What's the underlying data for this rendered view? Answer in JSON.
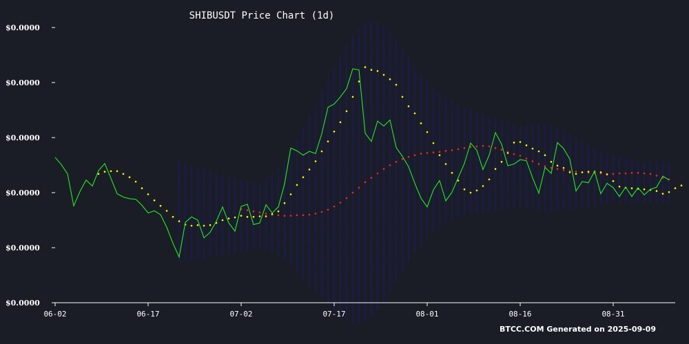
{
  "chart_data": {
    "type": "line",
    "title": "SHIBUSDT Price Chart (1d)",
    "footer": "BTCC.COM Generated on 2025-09-09",
    "xlabel": "",
    "ylabel": "",
    "x_ticks": [
      {
        "label": "06-02",
        "day": 0
      },
      {
        "label": "06-17",
        "day": 15
      },
      {
        "label": "07-02",
        "day": 30
      },
      {
        "label": "07-17",
        "day": 45
      },
      {
        "label": "08-01",
        "day": 60
      },
      {
        "label": "08-16",
        "day": 75
      },
      {
        "label": "08-31",
        "day": 90
      }
    ],
    "y_ticks": [
      {
        "label": "$0.0000",
        "value": 1.13e-05
      },
      {
        "label": "$0.0000",
        "value": 1.23e-05
      },
      {
        "label": "$0.0000",
        "value": 1.33e-05
      },
      {
        "label": "$0.0000",
        "value": 1.43e-05
      },
      {
        "label": "$0.0000",
        "value": 1.53e-05
      },
      {
        "label": "$0.0000",
        "value": 1.63e-05
      }
    ],
    "ylim": [
      1.13e-05,
      1.63e-05
    ],
    "xlim": [
      0,
      100
    ],
    "grid": false,
    "colors": {
      "price": "#22ee22",
      "ma_short": "#ffff00",
      "ma_long": "#ff2222",
      "bands": "#1a1a7a"
    },
    "series": [
      {
        "key": "price",
        "start_day": 0,
        "values": [
          1.394e-05,
          1.381e-05,
          1.364e-05,
          1.306e-05,
          1.332e-05,
          1.353e-05,
          1.342e-05,
          1.37e-05,
          1.383e-05,
          1.356e-05,
          1.328e-05,
          1.322e-05,
          1.319e-05,
          1.318e-05,
          1.307e-05,
          1.293e-05,
          1.297e-05,
          1.29e-05,
          1.267e-05,
          1.238e-05,
          1.213e-05,
          1.276e-05,
          1.286e-05,
          1.28e-05,
          1.248e-05,
          1.258e-05,
          1.278e-05,
          1.304e-05,
          1.275e-05,
          1.26e-05,
          1.305e-05,
          1.309e-05,
          1.272e-05,
          1.275e-05,
          1.308e-05,
          1.293e-05,
          1.304e-05,
          1.346e-05,
          1.411e-05,
          1.406e-05,
          1.398e-05,
          1.405e-05,
          1.401e-05,
          1.437e-05,
          1.485e-05,
          1.491e-05,
          1.504e-05,
          1.519e-05,
          1.555e-05,
          1.553e-05,
          1.438e-05,
          1.423e-05,
          1.46e-05,
          1.451e-05,
          1.462e-05,
          1.412e-05,
          1.396e-05,
          1.377e-05,
          1.347e-05,
          1.32e-05,
          1.304e-05,
          1.335e-05,
          1.352e-05,
          1.315e-05,
          1.331e-05,
          1.357e-05,
          1.383e-05,
          1.42e-05,
          1.407e-05,
          1.372e-05,
          1.398e-05,
          1.439e-05,
          1.418e-05,
          1.379e-05,
          1.382e-05,
          1.39e-05,
          1.388e-05,
          1.357e-05,
          1.329e-05,
          1.376e-05,
          1.365e-05,
          1.421e-05,
          1.41e-05,
          1.391e-05,
          1.333e-05,
          1.35e-05,
          1.348e-05,
          1.369e-05,
          1.328e-05,
          1.347e-05,
          1.339e-05,
          1.323e-05,
          1.34e-05,
          1.323e-05,
          1.339e-05,
          1.326e-05,
          1.336e-05,
          1.34e-05,
          1.36e-05,
          1.353e-05
        ]
      },
      {
        "key": "ma_short",
        "start_day": 7,
        "values": [
          1.364e-05,
          1.368e-05,
          1.369e-05,
          1.369e-05,
          1.364e-05,
          1.358e-05,
          1.35e-05,
          1.338e-05,
          1.327e-05,
          1.316e-05,
          1.306e-05,
          1.297e-05,
          1.286e-05,
          1.278e-05,
          1.272e-05,
          1.27e-05,
          1.271e-05,
          1.27e-05,
          1.271e-05,
          1.275e-05,
          1.28e-05,
          1.283e-05,
          1.285e-05,
          1.288e-05,
          1.286e-05,
          1.286e-05,
          1.287e-05,
          1.287e-05,
          1.291e-05,
          1.296e-05,
          1.311e-05,
          1.327e-05,
          1.344e-05,
          1.358e-05,
          1.372e-05,
          1.387e-05,
          1.405e-05,
          1.423e-05,
          1.441e-05,
          1.458e-05,
          1.478e-05,
          1.504e-05,
          1.532e-05,
          1.558e-05,
          1.553e-05,
          1.551e-05,
          1.544e-05,
          1.536e-05,
          1.526e-05,
          1.504e-05,
          1.487e-05,
          1.474e-05,
          1.456e-05,
          1.44e-05,
          1.42e-05,
          1.398e-05,
          1.382e-05,
          1.366e-05,
          1.352e-05,
          1.336e-05,
          1.33e-05,
          1.334e-05,
          1.342e-05,
          1.354e-05,
          1.373e-05,
          1.386e-05,
          1.402e-05,
          1.421e-05,
          1.422e-05,
          1.416e-05,
          1.41e-05,
          1.405e-05,
          1.398e-05,
          1.386e-05,
          1.379e-05,
          1.375e-05,
          1.367e-05,
          1.364e-05,
          1.367e-05,
          1.368e-05,
          1.368e-05,
          1.367e-05,
          1.363e-05,
          1.351e-05,
          1.341e-05,
          1.339e-05,
          1.338e-05,
          1.337e-05,
          1.336e-05,
          1.335e-05,
          1.333e-05,
          1.328e-05,
          1.331e-05,
          1.338e-05,
          1.343e-05
        ]
      },
      {
        "key": "ma_long",
        "start_day": 30,
        "values": [
          1.3e-05,
          1.298e-05,
          1.296e-05,
          1.294e-05,
          1.292e-05,
          1.29e-05,
          1.289e-05,
          1.288e-05,
          1.288e-05,
          1.289e-05,
          1.289e-05,
          1.29e-05,
          1.292e-05,
          1.295e-05,
          1.299e-05,
          1.305e-05,
          1.312e-05,
          1.32e-05,
          1.33e-05,
          1.339e-05,
          1.349e-05,
          1.357e-05,
          1.365e-05,
          1.373e-05,
          1.38e-05,
          1.386e-05,
          1.391e-05,
          1.395e-05,
          1.398e-05,
          1.401e-05,
          1.402e-05,
          1.403e-05,
          1.404e-05,
          1.406e-05,
          1.407e-05,
          1.409e-05,
          1.411e-05,
          1.413e-05,
          1.414e-05,
          1.415e-05,
          1.414e-05,
          1.411e-05,
          1.408e-05,
          1.404e-05,
          1.4e-05,
          1.397e-05,
          1.392e-05,
          1.387e-05,
          1.382e-05,
          1.378e-05,
          1.375e-05,
          1.373e-05,
          1.371e-05,
          1.369e-05,
          1.368e-05,
          1.367e-05,
          1.366e-05,
          1.365e-05,
          1.365e-05,
          1.364e-05,
          1.364e-05,
          1.365e-05,
          1.365e-05,
          1.366e-05,
          1.366e-05,
          1.365e-05,
          1.364e-05,
          1.361e-05,
          1.357e-05,
          1.354e-05
        ]
      },
      {
        "key": "band_upper",
        "start_day": 20,
        "values": [
          1.387e-05,
          1.382e-05,
          1.377e-05,
          1.374e-05,
          1.371e-05,
          1.367e-05,
          1.364e-05,
          1.361e-05,
          1.358e-05,
          1.355e-05,
          1.352e-05,
          1.349e-05,
          1.347e-05,
          1.345e-05,
          1.353e-05,
          1.363e-05,
          1.375e-05,
          1.388e-05,
          1.404e-05,
          1.424e-05,
          1.446e-05,
          1.469e-05,
          1.492e-05,
          1.515e-05,
          1.537e-05,
          1.558e-05,
          1.579e-05,
          1.598e-05,
          1.615e-05,
          1.628e-05,
          1.635e-05,
          1.639e-05,
          1.638e-05,
          1.632e-05,
          1.621e-05,
          1.606e-05,
          1.59e-05,
          1.575e-05,
          1.56e-05,
          1.545e-05,
          1.532e-05,
          1.521e-05,
          1.511e-05,
          1.502e-05,
          1.496e-05,
          1.49e-05,
          1.483e-05,
          1.478e-05,
          1.474e-05,
          1.47e-05,
          1.467e-05,
          1.464e-05,
          1.46e-05,
          1.456e-05,
          1.453e-05,
          1.45e-05,
          1.45e-05,
          1.451e-05,
          1.453e-05,
          1.452e-05,
          1.449e-05,
          1.446e-05,
          1.441e-05,
          1.436e-05,
          1.43e-05,
          1.422e-05,
          1.415e-05,
          1.409e-05,
          1.405e-05,
          1.401e-05,
          1.398e-05,
          1.395e-05,
          1.392e-05,
          1.389e-05,
          1.386e-05,
          1.385e-05,
          1.385e-05,
          1.386e-05,
          1.386e-05,
          1.384e-05
        ]
      },
      {
        "key": "band_lower",
        "start_day": 20,
        "values": [
          1.203e-05,
          1.205e-05,
          1.207e-05,
          1.208e-05,
          1.21e-05,
          1.212e-05,
          1.214e-05,
          1.216e-05,
          1.218e-05,
          1.22e-05,
          1.222e-05,
          1.225e-05,
          1.228e-05,
          1.231e-05,
          1.227e-05,
          1.222e-05,
          1.215e-05,
          1.207e-05,
          1.198e-05,
          1.186e-05,
          1.173e-05,
          1.16e-05,
          1.148e-05,
          1.136e-05,
          1.124e-05,
          1.114e-05,
          1.105e-05,
          1.098e-05,
          1.093e-05,
          1.092e-05,
          1.096e-05,
          1.104e-05,
          1.116e-05,
          1.131e-05,
          1.148e-05,
          1.167e-05,
          1.186e-05,
          1.204e-05,
          1.22e-05,
          1.235e-05,
          1.248e-05,
          1.259e-05,
          1.268e-05,
          1.275e-05,
          1.28e-05,
          1.284e-05,
          1.288e-05,
          1.291e-05,
          1.293e-05,
          1.295e-05,
          1.296e-05,
          1.297e-05,
          1.299e-05,
          1.301e-05,
          1.302e-05,
          1.303e-05,
          1.302e-05,
          1.299e-05,
          1.296e-05,
          1.295e-05,
          1.296e-05,
          1.297e-05,
          1.298e-05,
          1.299e-05,
          1.3e-05,
          1.302e-05,
          1.304e-05,
          1.306e-05,
          1.308e-05,
          1.31e-05,
          1.312e-05,
          1.313e-05,
          1.313e-05,
          1.313e-05,
          1.313e-05,
          1.312e-05,
          1.311e-05,
          1.31e-05,
          1.31e-05,
          1.31e-05
        ]
      }
    ]
  }
}
